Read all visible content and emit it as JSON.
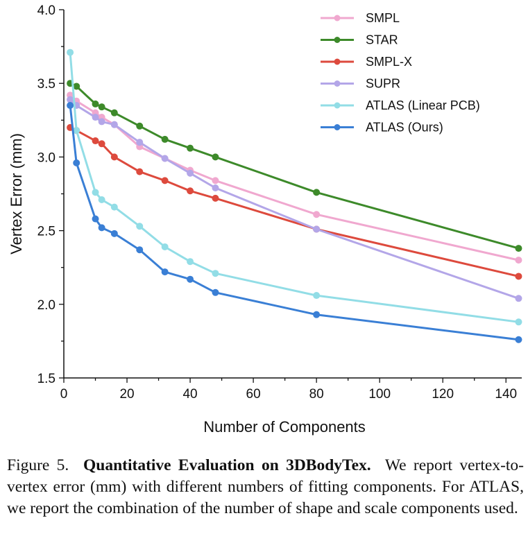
{
  "chart_data": {
    "type": "line",
    "title": "",
    "xlabel": "Number of Components",
    "ylabel": "Vertex Error (mm)",
    "xlim": [
      0,
      145
    ],
    "ylim": [
      1.5,
      4.0
    ],
    "xticks": [
      0,
      20,
      40,
      60,
      80,
      100,
      120,
      140
    ],
    "yticks": [
      1.5,
      2.0,
      2.5,
      3.0,
      3.5,
      4.0
    ],
    "ytick_labels": [
      "1.5",
      "2.0",
      "2.5",
      "3.0",
      "3.5",
      "4.0"
    ],
    "grid": false,
    "legend_position": "top-right",
    "series": [
      {
        "name": "SMPL",
        "color": "#f0a8cf",
        "x": [
          2,
          4,
          10,
          12,
          16,
          24,
          32,
          40,
          48,
          80,
          144
        ],
        "y": [
          3.42,
          3.38,
          3.3,
          3.27,
          3.22,
          3.07,
          2.99,
          2.91,
          2.84,
          2.61,
          2.3
        ]
      },
      {
        "name": "STAR",
        "color": "#3d8a2a",
        "x": [
          2,
          4,
          10,
          12,
          16,
          24,
          32,
          40,
          48,
          80,
          144
        ],
        "y": [
          3.5,
          3.48,
          3.36,
          3.34,
          3.3,
          3.21,
          3.12,
          3.06,
          3.0,
          2.76,
          2.38
        ]
      },
      {
        "name": "SMPL-X",
        "color": "#dd4a3d",
        "x": [
          2,
          4,
          10,
          12,
          16,
          24,
          32,
          40,
          48,
          80,
          144
        ],
        "y": [
          3.2,
          3.18,
          3.11,
          3.09,
          3.0,
          2.9,
          2.84,
          2.77,
          2.72,
          2.51,
          2.19
        ]
      },
      {
        "name": "SUPR",
        "color": "#b3a6e8",
        "x": [
          2,
          4,
          10,
          12,
          16,
          24,
          32,
          40,
          48,
          80,
          144
        ],
        "y": [
          3.39,
          3.35,
          3.27,
          3.24,
          3.22,
          3.1,
          2.99,
          2.89,
          2.79,
          2.51,
          2.04
        ]
      },
      {
        "name": "ATLAS (Linear PCB)",
        "color": "#92dde6",
        "x": [
          2,
          4,
          10,
          12,
          16,
          24,
          32,
          40,
          48,
          80,
          144
        ],
        "y": [
          3.71,
          3.18,
          2.76,
          2.71,
          2.66,
          2.53,
          2.39,
          2.29,
          2.21,
          2.06,
          1.88
        ]
      },
      {
        "name": "ATLAS (Ours)",
        "color": "#3a7fd5",
        "x": [
          2,
          4,
          10,
          12,
          16,
          24,
          32,
          40,
          48,
          80,
          144
        ],
        "y": [
          3.35,
          2.96,
          2.58,
          2.52,
          2.48,
          2.37,
          2.22,
          2.17,
          2.08,
          1.93,
          1.76
        ]
      }
    ]
  },
  "caption": {
    "label": "Figure 5.",
    "title": "Quantitative Evaluation on 3DBodyTex.",
    "text": "We report vertex-to-vertex error (mm) with different numbers of fitting components. For ATLAS, we report the combination of the number of shape and scale components used."
  }
}
